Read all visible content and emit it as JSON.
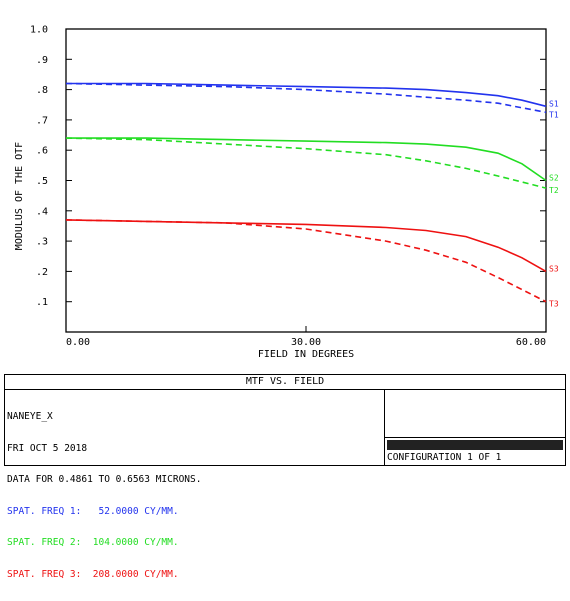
{
  "colors": {
    "blue": "#2233ee",
    "green": "#22dd22",
    "red": "#ee1111",
    "axis": "#000000"
  },
  "chart_data": {
    "type": "line",
    "title": "MTF VS. FIELD",
    "xlabel": "FIELD IN DEGREES",
    "ylabel": "MODULUS OF THE OTF",
    "xlim": [
      0,
      60
    ],
    "ylim": [
      0,
      1
    ],
    "x_ticks": [
      "0.00",
      "30.00",
      "60.00"
    ],
    "x_tick_values": [
      0,
      30,
      60
    ],
    "y_ticks": [
      ".1",
      ".2",
      ".3",
      ".4",
      ".5",
      ".6",
      ".7",
      ".8",
      ".9",
      "1.0"
    ],
    "y_tick_values": [
      0.1,
      0.2,
      0.3,
      0.4,
      0.5,
      0.6,
      0.7,
      0.8,
      0.9,
      1.0
    ],
    "grid": false,
    "series": [
      {
        "name": "S1",
        "color": "#2233ee",
        "dash": false,
        "x": [
          0,
          10,
          20,
          30,
          40,
          45,
          50,
          54,
          57,
          60
        ],
        "y": [
          0.82,
          0.82,
          0.815,
          0.81,
          0.805,
          0.8,
          0.79,
          0.78,
          0.765,
          0.745
        ]
      },
      {
        "name": "T1",
        "color": "#2233ee",
        "dash": true,
        "x": [
          0,
          10,
          20,
          30,
          40,
          45,
          50,
          54,
          57,
          60
        ],
        "y": [
          0.82,
          0.815,
          0.81,
          0.8,
          0.785,
          0.775,
          0.765,
          0.755,
          0.74,
          0.725
        ]
      },
      {
        "name": "S2",
        "color": "#22dd22",
        "dash": false,
        "x": [
          0,
          10,
          20,
          30,
          40,
          45,
          50,
          54,
          57,
          60
        ],
        "y": [
          0.64,
          0.64,
          0.635,
          0.63,
          0.625,
          0.62,
          0.61,
          0.59,
          0.555,
          0.5
        ]
      },
      {
        "name": "T2",
        "color": "#22dd22",
        "dash": true,
        "x": [
          0,
          10,
          20,
          30,
          40,
          45,
          50,
          54,
          57,
          60
        ],
        "y": [
          0.64,
          0.635,
          0.62,
          0.605,
          0.585,
          0.565,
          0.54,
          0.515,
          0.495,
          0.475
        ]
      },
      {
        "name": "S3",
        "color": "#ee1111",
        "dash": false,
        "x": [
          0,
          10,
          20,
          30,
          40,
          45,
          50,
          54,
          57,
          60
        ],
        "y": [
          0.37,
          0.365,
          0.36,
          0.355,
          0.345,
          0.335,
          0.315,
          0.28,
          0.245,
          0.2
        ]
      },
      {
        "name": "T3",
        "color": "#ee1111",
        "dash": true,
        "x": [
          0,
          10,
          20,
          30,
          40,
          45,
          50,
          54,
          57,
          60
        ],
        "y": [
          0.37,
          0.365,
          0.36,
          0.34,
          0.3,
          0.27,
          0.23,
          0.18,
          0.14,
          0.1
        ]
      }
    ]
  },
  "footer": {
    "lens_name": "NANEYE_X",
    "date": "FRI OCT 5 2018",
    "data_range": "DATA FOR 0.4861 TO 0.6563 MICRONS.",
    "freq1": "SPAT. FREQ 1:   52.0000 CY/MM.",
    "freq2": "SPAT. FREQ 2:  104.0000 CY/MM.",
    "freq3": "SPAT. FREQ 3:  208.0000 CY/MM.",
    "config": "CONFIGURATION 1 OF 1"
  }
}
